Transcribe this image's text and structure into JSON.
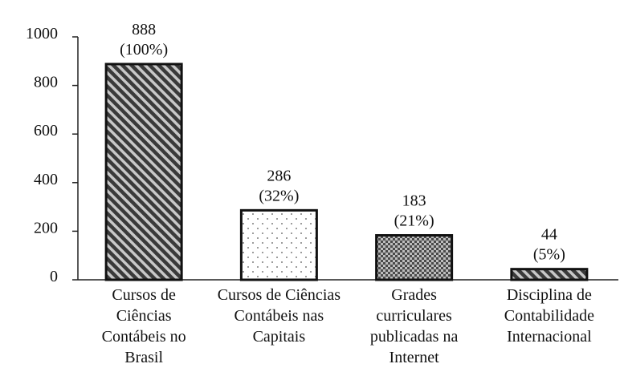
{
  "chart_data": {
    "type": "bar",
    "title": "",
    "xlabel": "",
    "ylabel": "",
    "ylim": [
      0,
      1000
    ],
    "yticks": [
      0,
      200,
      400,
      600,
      800,
      1000
    ],
    "grid": false,
    "categories": [
      "Cursos de Ciências Contábeis no Brasil",
      "Cursos de Ciências Contábeis nas Capitais",
      "Grades curriculares publicadas na Internet",
      "Disciplina de Contabilidade Internacional"
    ],
    "category_lines": [
      [
        "Cursos de",
        "Ciências",
        "Contábeis no",
        "Brasil"
      ],
      [
        "Cursos de Ciências",
        "Contábeis nas",
        "Capitais"
      ],
      [
        "Grades",
        "curriculares",
        "publicadas na",
        "Internet"
      ],
      [
        "Disciplina de",
        "Contabilidade",
        "Internacional"
      ]
    ],
    "values": [
      888,
      286,
      183,
      44
    ],
    "value_labels": [
      "888",
      "286",
      "183",
      "44"
    ],
    "percent_labels": [
      "(100%)",
      "(32%)",
      "(21%)",
      "(5%)"
    ],
    "bar_patterns": [
      "diagonal-stripes",
      "dots",
      "checker",
      "diagonal-stripes"
    ],
    "colors": {
      "axis": "#222222",
      "bar_outline": "#111111",
      "dark_fill": "#3a3a3a",
      "light_fill": "#ffffff"
    }
  }
}
